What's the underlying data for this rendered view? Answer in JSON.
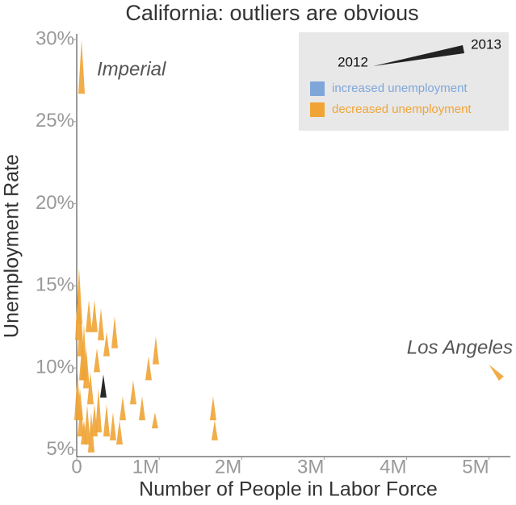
{
  "chart_data": {
    "type": "wedge-scatter",
    "title": "California: outliers are obvious",
    "x_label": "Number of People in Labor Force",
    "y_label": "Unemployment Rate",
    "annotations": [
      "Imperial",
      "Los Angeles"
    ],
    "legend_years": [
      2012,
      2013
    ],
    "xlim": [
      0,
      5200000
    ],
    "ylim": [
      4.6,
      30.2
    ],
    "xticks": [
      {
        "value": 0,
        "label": "0"
      },
      {
        "value": 1000000,
        "label": "1M"
      },
      {
        "value": 2000000,
        "label": "2M"
      },
      {
        "value": 3000000,
        "label": "3M"
      },
      {
        "value": 4000000,
        "label": "4M"
      },
      {
        "value": 5000000,
        "label": "5M"
      }
    ],
    "yticks": [
      {
        "value": 5,
        "label": "5%"
      },
      {
        "value": 10,
        "label": "10%"
      },
      {
        "value": 15,
        "label": "15%"
      },
      {
        "value": 20,
        "label": "20%"
      },
      {
        "value": 25,
        "label": "25%"
      },
      {
        "value": 30,
        "label": "30%"
      }
    ],
    "series": [
      {
        "name": "increased unemployment",
        "color": "#7fa6d9",
        "x_2012": [],
        "values_2012": [],
        "x_2013": [],
        "values_2013": []
      },
      {
        "name": "decreased unemployment",
        "color": "#f0a435",
        "colors": [
          "#f0a435",
          "#f0a435",
          "#111111",
          "#f0a435",
          "#f0a435",
          "#f0a435",
          "#f0a435",
          "#f0a435",
          "#f0a435",
          "#f0a435",
          "#f0a435",
          "#f0a435",
          "#f0a435",
          "#f0a435",
          "#f0a435",
          "#f0a435",
          "#f0a435",
          "#f0a435",
          "#f0a435",
          "#f0a435",
          "#f0a435",
          "#f0a435",
          "#f0a435",
          "#f0a435",
          "#f0a435",
          "#f0a435",
          "#f0a435",
          "#f0a435",
          "#f0a435",
          "#f0a435",
          "#f0a435",
          "#f0a435",
          "#f0a435",
          "#f0a435",
          "#f0a435"
        ],
        "x_2012": [
          59000,
          5000000,
          323000,
          29000,
          20000,
          49000,
          88000,
          117000,
          10000,
          39000,
          68000,
          147000,
          215000,
          294000,
          460000,
          362000,
          245000,
          127000,
          176000,
          264000,
          215000,
          362000,
          440000,
          519000,
          558000,
          685000,
          793000,
          871000,
          959000,
          949000,
          1654000,
          1673000,
          88000,
          166000,
          49000
        ],
        "values_2012": [
          30.0,
          10.2,
          9.6,
          16.08,
          15.11,
          13.64,
          12.67,
          11.2,
          9.74,
          8.76,
          11.69,
          14.13,
          14.13,
          13.64,
          13.15,
          12.18,
          11.2,
          7.78,
          7.29,
          8.76,
          7.78,
          7.78,
          7.29,
          6.81,
          8.27,
          9.25,
          8.27,
          10.71,
          11.93,
          7.29,
          8.27,
          6.81,
          6.81,
          9.74,
          7.78
        ],
        "x_2013": [
          59000,
          5150000,
          323000,
          29000,
          20000,
          49000,
          88000,
          117000,
          10000,
          39000,
          68000,
          147000,
          215000,
          294000,
          460000,
          362000,
          245000,
          127000,
          176000,
          264000,
          215000,
          362000,
          440000,
          519000,
          558000,
          685000,
          793000,
          871000,
          959000,
          949000,
          1654000,
          1673000,
          88000,
          166000,
          49000
        ],
        "values_2013": [
          26.7,
          9.35,
          8.2,
          12.67,
          11.69,
          10.71,
          9.25,
          8.76,
          6.81,
          6.81,
          9.25,
          12.18,
          12.18,
          11.69,
          11.2,
          10.71,
          9.74,
          5.34,
          4.85,
          6.07,
          5.83,
          5.83,
          5.59,
          5.34,
          6.81,
          7.78,
          6.81,
          9.25,
          10.22,
          6.32,
          6.81,
          5.59,
          5.34,
          7.78,
          5.83
        ]
      }
    ]
  }
}
